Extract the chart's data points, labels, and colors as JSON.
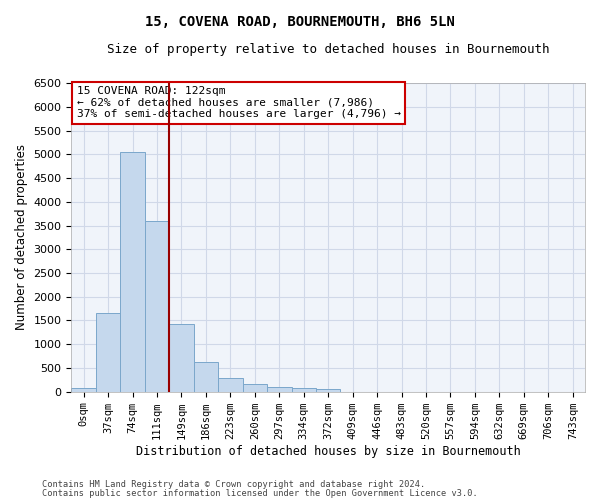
{
  "title": "15, COVENA ROAD, BOURNEMOUTH, BH6 5LN",
  "subtitle": "Size of property relative to detached houses in Bournemouth",
  "xlabel": "Distribution of detached houses by size in Bournemouth",
  "ylabel": "Number of detached properties",
  "footer1": "Contains HM Land Registry data © Crown copyright and database right 2024.",
  "footer2": "Contains public sector information licensed under the Open Government Licence v3.0.",
  "bar_labels": [
    "0sqm",
    "37sqm",
    "74sqm",
    "111sqm",
    "149sqm",
    "186sqm",
    "223sqm",
    "260sqm",
    "297sqm",
    "334sqm",
    "372sqm",
    "409sqm",
    "446sqm",
    "483sqm",
    "520sqm",
    "557sqm",
    "594sqm",
    "632sqm",
    "669sqm",
    "706sqm",
    "743sqm"
  ],
  "bar_values": [
    75,
    1650,
    5050,
    3600,
    1420,
    625,
    290,
    155,
    100,
    70,
    55,
    0,
    0,
    0,
    0,
    0,
    0,
    0,
    0,
    0,
    0
  ],
  "bar_color": "#c5d8ed",
  "bar_edgecolor": "#7ba7cb",
  "vline_color": "#990000",
  "ylim_max": 6500,
  "ytick_step": 500,
  "annotation_line1": "15 COVENA ROAD: 122sqm",
  "annotation_line2": "← 62% of detached houses are smaller (7,986)",
  "annotation_line3": "37% of semi-detached houses are larger (4,796) →",
  "annotation_box_edgecolor": "#cc0000",
  "background_color": "#ffffff",
  "plot_bg_color": "#f0f4fa",
  "grid_color": "#d0d8e8",
  "title_fontsize": 10,
  "subtitle_fontsize": 9
}
